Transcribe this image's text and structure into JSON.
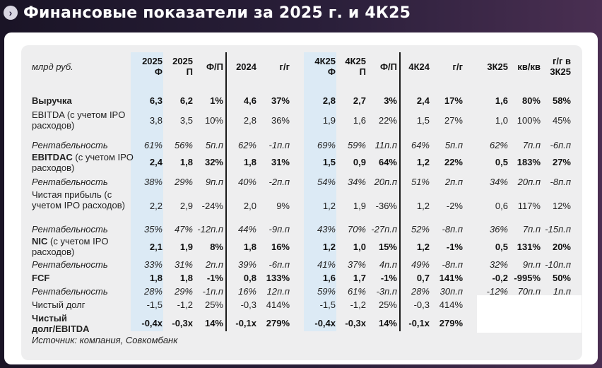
{
  "title": "Финансовые показатели за 2025 г. и 4К25",
  "table": {
    "unit_label": "млрд руб.",
    "headers": [
      "2025 Ф",
      "2025 П",
      "Ф/П",
      "2024",
      "г/г",
      "4К25 Ф",
      "4К25 П",
      "Ф/П",
      "4К24",
      "г/г",
      "3К25",
      "кв/кв",
      "г/г в 3К25"
    ],
    "rows": [
      {
        "label": "Выручка",
        "bold": true,
        "italic": false,
        "cells": [
          "6,3",
          "6,2",
          "1%",
          "4,6",
          "37%",
          "2,8",
          "2,7",
          "3%",
          "2,4",
          "17%",
          "1,6",
          "80%",
          "58%"
        ]
      },
      {
        "label": "EBITDA (с учетом IPO расходов)",
        "bold": false,
        "italic": false,
        "cells": [
          "3,8",
          "3,5",
          "10%",
          "2,8",
          "36%",
          "1,9",
          "1,6",
          "22%",
          "1,5",
          "27%",
          "1,0",
          "100%",
          "45%"
        ]
      },
      {
        "label": "Рентабельность",
        "bold": false,
        "italic": true,
        "cells": [
          "61%",
          "56%",
          "5п.п",
          "62%",
          "-1п.п",
          "69%",
          "59%",
          "11п.п",
          "64%",
          "5п.п",
          "62%",
          "7п.п",
          "-6п.п"
        ]
      },
      {
        "label": "EBITDAC (с учетом IPO расходов)",
        "bold": true,
        "italic": false,
        "cells": [
          "2,4",
          "1,8",
          "32%",
          "1,8",
          "31%",
          "1,5",
          "0,9",
          "64%",
          "1,2",
          "22%",
          "0,5",
          "183%",
          "27%"
        ]
      },
      {
        "label": "Рентабельность",
        "bold": false,
        "italic": true,
        "cells": [
          "38%",
          "29%",
          "9п.п",
          "40%",
          "-2п.п",
          "54%",
          "34%",
          "20п.п",
          "51%",
          "2п.п",
          "34%",
          "20п.п",
          "-8п.п"
        ]
      },
      {
        "label": "Чистая прибыль (с учетом IPO расходов)",
        "bold": false,
        "italic": false,
        "cells": [
          "2,2",
          "2,9",
          "-24%",
          "2,0",
          "9%",
          "1,2",
          "1,9",
          "-36%",
          "1,2",
          "-2%",
          "0,6",
          "117%",
          "12%"
        ]
      },
      {
        "label": "Рентабельность",
        "bold": false,
        "italic": true,
        "cells": [
          "35%",
          "47%",
          "-12п.п",
          "44%",
          "-9п.п",
          "43%",
          "70%",
          "-27п.п",
          "52%",
          "-8п.п",
          "36%",
          "7п.п",
          "-15п.п"
        ]
      },
      {
        "label": "NIC (с учетом IPO расходов)",
        "bold": true,
        "italic": false,
        "cells": [
          "2,1",
          "1,9",
          "8%",
          "1,8",
          "16%",
          "1,2",
          "1,0",
          "15%",
          "1,2",
          "-1%",
          "0,5",
          "131%",
          "20%"
        ]
      },
      {
        "label": "Рентабельность",
        "bold": false,
        "italic": true,
        "cells": [
          "33%",
          "31%",
          "2п.п",
          "39%",
          "-6п.п",
          "41%",
          "37%",
          "4п.п",
          "49%",
          "-8п.п",
          "32%",
          "9п.п",
          "-10п.п"
        ]
      },
      {
        "label": "FCF",
        "bold": true,
        "italic": false,
        "cells": [
          "1,8",
          "1,8",
          "-1%",
          "0,8",
          "133%",
          "1,6",
          "1,7",
          "-1%",
          "0,7",
          "141%",
          "-0,2",
          "-995%",
          "50%"
        ]
      },
      {
        "label": "Рентабельность",
        "bold": false,
        "italic": true,
        "cells": [
          "28%",
          "29%",
          "-1п.п",
          "16%",
          "12п.п",
          "59%",
          "61%",
          "-3п.п",
          "28%",
          "30п.п",
          "-12%",
          "70п.п",
          "1п.п"
        ]
      },
      {
        "label": "Чистый долг",
        "bold": false,
        "italic": false,
        "cells": [
          "-1,5",
          "-1,2",
          "25%",
          "-0,3",
          "414%",
          "-1,5",
          "-1,2",
          "25%",
          "-0,3",
          "414%",
          "",
          "",
          ""
        ]
      },
      {
        "label": "Чистый долг/EBITDA",
        "bold": true,
        "italic": false,
        "cells": [
          "-0,4x",
          "-0,3x",
          "14%",
          "-0,1x",
          "279%",
          "-0,4x",
          "-0,3x",
          "14%",
          "-0,1x",
          "279%",
          "",
          "",
          ""
        ]
      }
    ]
  },
  "source": "Источник: компания, Совкомбанк"
}
